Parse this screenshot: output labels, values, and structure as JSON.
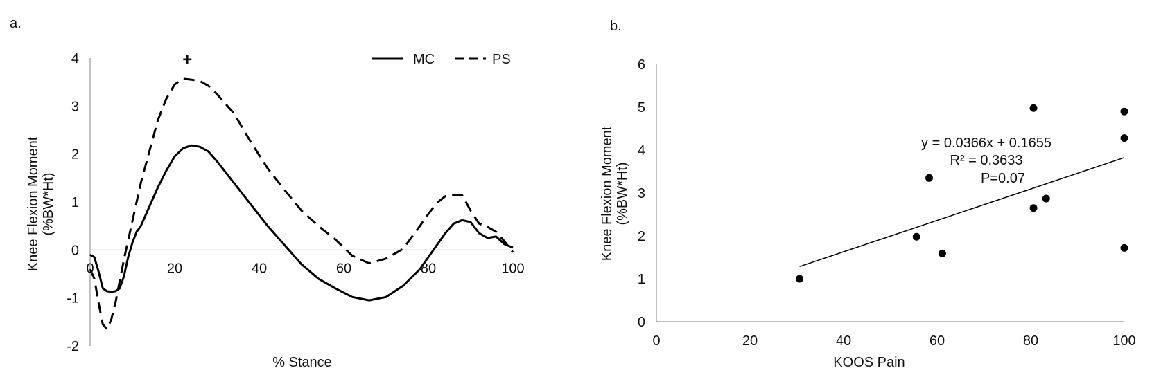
{
  "panels": {
    "a_label": "a.",
    "b_label": "b."
  },
  "colors": {
    "line": "#000000",
    "axis": "#000000",
    "text": "#111111"
  },
  "chart_data": [
    {
      "type": "line",
      "xlabel": "% Stance",
      "ylabel_line1": "Knee Flexion Moment",
      "ylabel_line2": "(%BW*Ht)",
      "xlim": [
        0,
        100
      ],
      "ylim": [
        -2,
        4
      ],
      "xticks": [
        0,
        20,
        40,
        60,
        80,
        100
      ],
      "yticks": [
        -2,
        -1,
        0,
        1,
        2,
        3,
        4
      ],
      "annotation": "+",
      "annotation_x": 23,
      "annotation_y": 4,
      "legend_position": "top-right",
      "series": [
        {
          "name": "MC",
          "dash": "solid",
          "x": [
            0,
            1,
            2,
            3,
            4,
            5,
            6,
            7,
            8,
            9,
            10,
            11,
            12,
            14,
            16,
            18,
            20,
            22,
            24,
            26,
            28,
            30,
            34,
            38,
            42,
            46,
            50,
            54,
            58,
            62,
            66,
            70,
            74,
            78,
            80,
            82,
            84,
            86,
            88,
            90,
            92,
            94,
            96,
            98,
            100
          ],
          "values": [
            -0.1,
            -0.15,
            -0.45,
            -0.8,
            -0.86,
            -0.87,
            -0.86,
            -0.8,
            -0.55,
            -0.15,
            0.15,
            0.38,
            0.5,
            0.9,
            1.3,
            1.65,
            1.95,
            2.12,
            2.18,
            2.15,
            2.05,
            1.85,
            1.4,
            0.95,
            0.5,
            0.1,
            -0.3,
            -0.6,
            -0.8,
            -0.98,
            -1.05,
            -0.98,
            -0.75,
            -0.4,
            -0.15,
            0.1,
            0.35,
            0.55,
            0.62,
            0.58,
            0.35,
            0.25,
            0.28,
            0.12,
            0.05
          ]
        },
        {
          "name": "PS",
          "dash": "dashed",
          "x": [
            0,
            1,
            2,
            3,
            4,
            5,
            6,
            7,
            8,
            9,
            10,
            11,
            12,
            14,
            16,
            18,
            20,
            22,
            24,
            26,
            28,
            30,
            34,
            38,
            42,
            46,
            50,
            54,
            58,
            62,
            66,
            70,
            74,
            78,
            80,
            82,
            84,
            86,
            88,
            90,
            92,
            94,
            96,
            98,
            100
          ],
          "values": [
            -0.4,
            -0.6,
            -1.1,
            -1.55,
            -1.65,
            -1.45,
            -1.1,
            -0.65,
            -0.2,
            0.2,
            0.6,
            1.0,
            1.4,
            2.05,
            2.7,
            3.15,
            3.45,
            3.57,
            3.55,
            3.52,
            3.42,
            3.25,
            2.85,
            2.25,
            1.7,
            1.25,
            0.82,
            0.5,
            0.22,
            -0.12,
            -0.28,
            -0.18,
            0.02,
            0.5,
            0.75,
            0.98,
            1.12,
            1.15,
            1.14,
            0.82,
            0.55,
            0.48,
            0.38,
            0.18,
            -0.05
          ]
        }
      ]
    },
    {
      "type": "scatter",
      "xlabel": "KOOS Pain",
      "ylabel_line1": "Knee Flexion Moment",
      "ylabel_line2": "(%BW*Ht)",
      "xlim": [
        0,
        100
      ],
      "ylim": [
        0,
        6
      ],
      "xticks": [
        0,
        20,
        40,
        60,
        80,
        100
      ],
      "yticks": [
        0,
        1,
        2,
        3,
        4,
        5,
        6
      ],
      "points": [
        {
          "x": 30.6,
          "y": 1.0
        },
        {
          "x": 55.6,
          "y": 1.98
        },
        {
          "x": 58.3,
          "y": 3.35
        },
        {
          "x": 61.1,
          "y": 1.59
        },
        {
          "x": 80.6,
          "y": 2.65
        },
        {
          "x": 80.6,
          "y": 4.98
        },
        {
          "x": 83.3,
          "y": 2.87
        },
        {
          "x": 100,
          "y": 4.9
        },
        {
          "x": 100,
          "y": 4.28
        },
        {
          "x": 100,
          "y": 1.72
        }
      ],
      "trendline": {
        "slope": 0.0366,
        "intercept": 0.1655,
        "x_from": 30.6,
        "x_to": 100
      },
      "equation_text": "y = 0.0366x + 0.1655",
      "r2_text": "R² = 0.3633",
      "p_text": "P=0.07"
    }
  ]
}
